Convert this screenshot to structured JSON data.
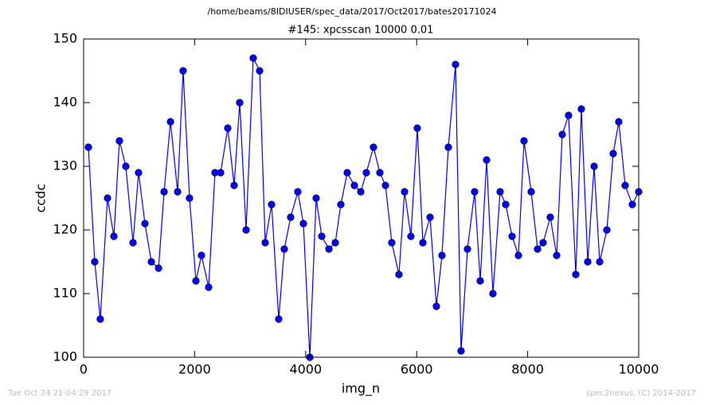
{
  "chart_data": {
    "type": "line",
    "title": "/home/beams/8IDIUSER/spec_data/2017/Oct2017/bates20171024",
    "subtitle": "#145: xpcsscan 10000 0.01",
    "xlabel": "img_n",
    "ylabel": "ccdc",
    "x": [
      86,
      200,
      300,
      430,
      545,
      645,
      760,
      890,
      990,
      1105,
      1220,
      1350,
      1450,
      1565,
      1693,
      1793,
      1908,
      2023,
      2123,
      2252,
      2367,
      2468,
      2597,
      2712,
      2812,
      2927,
      3056,
      3171,
      3271,
      3386,
      3515,
      3615,
      3730,
      3859,
      3960,
      4075,
      4189,
      4290,
      4419,
      4534,
      4634,
      4749,
      4878,
      4993,
      5093,
      5222,
      5337,
      5438,
      5552,
      5681,
      5782,
      5896,
      6011,
      6112,
      6241,
      6356,
      6456,
      6571,
      6700,
      6800,
      6915,
      7044,
      7145,
      7260,
      7374,
      7504,
      7604,
      7719,
      7834,
      7934,
      8063,
      8178,
      8278,
      8407,
      8522,
      8623,
      8737,
      8867,
      8967,
      9082,
      9197,
      9297,
      9426,
      9541,
      9641,
      9756,
      9885,
      10000
    ],
    "series": [
      {
        "name": "ccdc",
        "color": "#0000ff",
        "values": [
          133,
          115,
          106,
          125,
          119,
          134,
          130,
          118,
          129,
          121,
          115,
          114,
          126,
          137,
          126,
          145,
          125,
          112,
          116,
          111,
          129,
          129,
          136,
          127,
          140,
          120,
          147,
          145,
          118,
          124,
          106,
          117,
          122,
          126,
          121,
          100,
          125,
          119,
          117,
          118,
          124,
          129,
          127,
          126,
          129,
          133,
          129,
          127,
          118,
          113,
          126,
          119,
          136,
          118,
          122,
          108,
          116,
          133,
          146,
          101,
          117,
          126,
          112,
          131,
          110,
          126,
          124,
          119,
          116,
          134,
          126,
          117,
          118,
          122,
          116,
          135,
          138,
          113,
          139,
          115,
          130,
          115,
          120,
          132,
          137,
          127,
          124,
          126
        ]
      }
    ],
    "xlim": [
      0,
      10000
    ],
    "xticks": [
      0,
      2000,
      4000,
      6000,
      8000,
      10000
    ],
    "ylim": [
      100,
      150
    ],
    "yticks": [
      100,
      110,
      120,
      130,
      140,
      150
    ]
  },
  "footer_left": "Tue Oct 24 21:04:29 2017",
  "footer_right": "spec2nexus, (C) 2014-2017"
}
